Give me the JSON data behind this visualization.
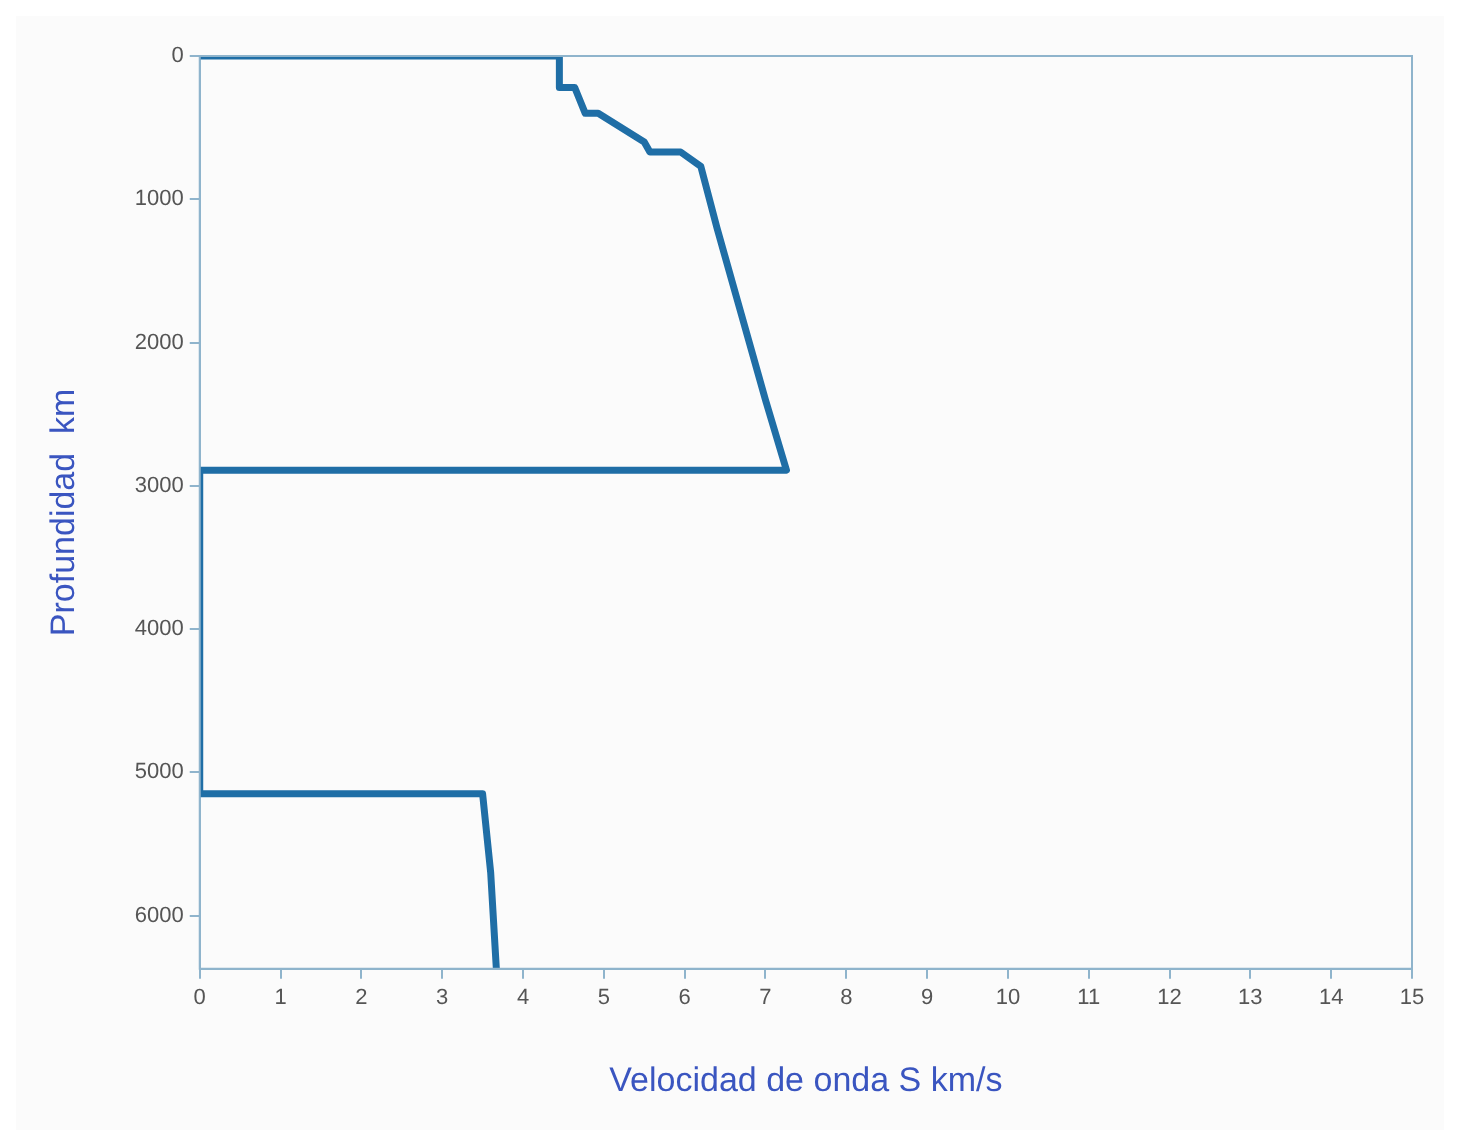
{
  "chart_data": {
    "type": "line",
    "xlabel": "Velocidad de onda S km/s",
    "ylabel": "Profundidad  km",
    "xlim": [
      0,
      15
    ],
    "xticks": [
      0,
      1,
      2,
      3,
      4,
      5,
      6,
      7,
      8,
      9,
      10,
      11,
      12,
      13,
      14,
      15
    ],
    "ylim": [
      6371,
      0
    ],
    "yticks": [
      0,
      1000,
      2000,
      3000,
      4000,
      5000,
      6000
    ],
    "grid": false,
    "legend": false,
    "marker": "none",
    "line_style": "solid",
    "series": [
      {
        "color": "#1f6ea6",
        "x": [
          0,
          4.45,
          4.45,
          4.64,
          4.77,
          4.93,
          5.5,
          5.57,
          5.95,
          6.2,
          6.4,
          6.7,
          7.0,
          7.26,
          0,
          0,
          3.5,
          3.6,
          3.67
        ],
        "values": [
          0,
          0,
          220,
          220,
          400,
          400,
          600,
          670,
          670,
          771,
          1200,
          1800,
          2400,
          2891,
          2891,
          5150,
          5150,
          5700,
          6371
        ]
      }
    ]
  }
}
